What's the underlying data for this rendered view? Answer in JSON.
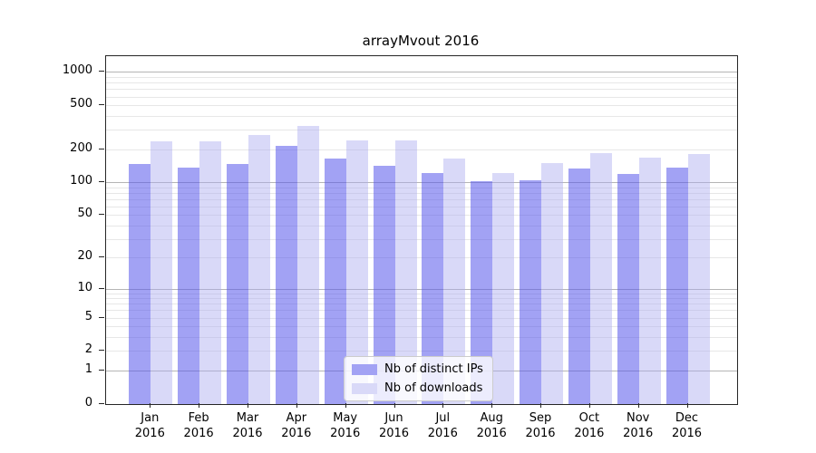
{
  "title": "arrayMvout 2016",
  "chart_data": {
    "type": "bar",
    "title": "arrayMvout 2016",
    "categories": [
      "Jan 2016",
      "Feb 2016",
      "Mar 2016",
      "Apr 2016",
      "May 2016",
      "Jun 2016",
      "Jul 2016",
      "Aug 2016",
      "Sep 2016",
      "Oct 2016",
      "Nov 2016",
      "Dec 2016"
    ],
    "series": [
      {
        "name": "Nb of distinct IPs",
        "color": "#a2a2f4",
        "fill_rgba": "rgba(85,85,235,0.55)",
        "values": [
          145,
          135,
          145,
          213,
          165,
          140,
          122,
          102,
          104,
          133,
          119,
          135
        ]
      },
      {
        "name": "Nb of downloads",
        "color": "#d9d9f8",
        "fill_rgba": "rgba(170,170,240,0.45)",
        "values": [
          237,
          236,
          270,
          323,
          238,
          238,
          164,
          120,
          150,
          183,
          167,
          180
        ]
      }
    ],
    "xlabel": "",
    "ylabel": "",
    "y_axis": {
      "scale": "log1p",
      "tick_values": [
        0,
        1,
        2,
        5,
        10,
        20,
        50,
        100,
        200,
        500,
        1000
      ],
      "major_gridlines": [
        1,
        10,
        100,
        1000
      ],
      "minor_gridlines": [
        2,
        3,
        4,
        5,
        6,
        7,
        8,
        9,
        20,
        30,
        40,
        50,
        60,
        70,
        80,
        90,
        200,
        300,
        400,
        500,
        600,
        700,
        800,
        900
      ],
      "ylim": [
        0,
        1200
      ]
    },
    "grid": "on",
    "legend_position": "bottom-center-inside"
  }
}
